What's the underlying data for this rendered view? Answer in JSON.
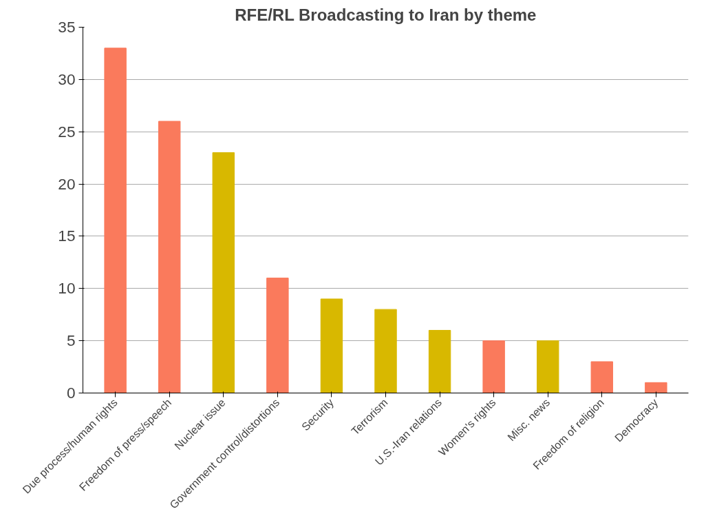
{
  "chart_data": {
    "type": "bar",
    "title": "RFE/RL Broadcasting to Iran by theme",
    "categories": [
      "Due process/human rights",
      "Freedom of press/speech",
      "Nuclear issue",
      "Government control/distortions",
      "Security",
      "Terrorism",
      "U.S.-Iran relations",
      "Women's rights",
      "Misc. news",
      "Freedom of religion",
      "Democracy"
    ],
    "values": [
      33,
      26,
      23,
      11,
      9,
      8,
      6,
      5,
      5,
      3,
      1
    ],
    "colors": [
      "#fa7a5c",
      "#fa7a5c",
      "#d8b800",
      "#fa7a5c",
      "#d8b800",
      "#d8b800",
      "#d8b800",
      "#fa7a5c",
      "#d8b800",
      "#fa7a5c",
      "#fa7a5c"
    ],
    "ylim": [
      0,
      35
    ],
    "yticks": [
      0,
      5,
      10,
      15,
      20,
      25,
      30,
      35
    ],
    "grid": "y"
  }
}
